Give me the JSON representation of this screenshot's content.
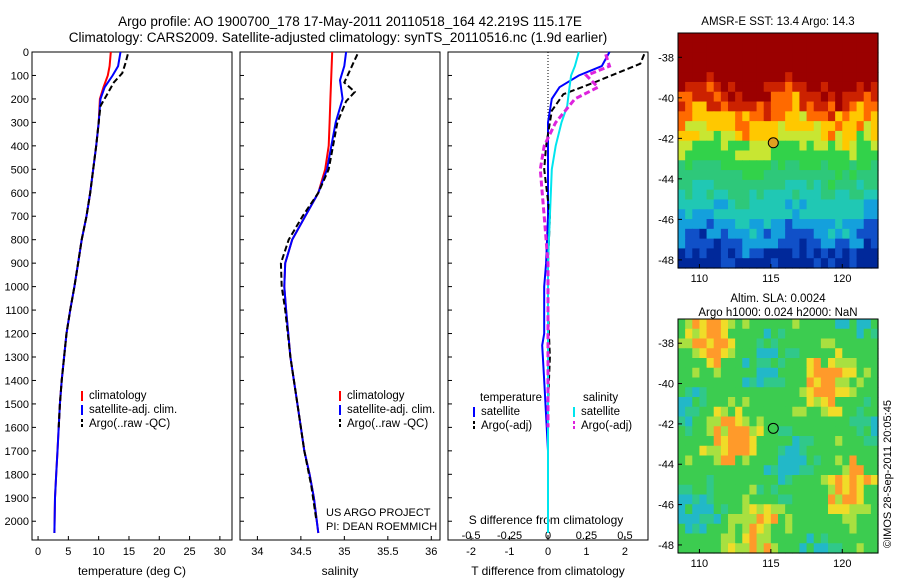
{
  "header": {
    "line1": "Argo profile: AO 1900700_178 17-May-2011 20110518_164 42.219S 115.17E",
    "line2": "Climatology: CARS2009. Satellite-adjusted climatology: synTS_20110516.nc (1.9d earlier)"
  },
  "project": {
    "line1": "US ARGO PROJECT",
    "line2": "PI: DEAN ROEMMICH"
  },
  "credit": "©IMOS 28-Sep-2011 20:05:45",
  "colors": {
    "climatology": "#ff0000",
    "satellite": "#0000ff",
    "argo": "#000000",
    "salinity_sat": "#00e5ee",
    "salinity_argo": "#dd22dd"
  },
  "chart_data": [
    {
      "id": "temperature",
      "type": "line",
      "xlabel": "temperature (deg C)",
      "ylabel": "",
      "xlim": [
        -1,
        32
      ],
      "ylim": [
        2080,
        0
      ],
      "xticks": [
        0,
        5,
        10,
        15,
        20,
        25,
        30
      ],
      "yticks": [
        0,
        100,
        200,
        300,
        400,
        500,
        600,
        700,
        800,
        900,
        1000,
        1100,
        1200,
        1300,
        1400,
        1500,
        1600,
        1700,
        1800,
        1900,
        2000
      ],
      "legend": [
        "climatology",
        "satellite-adj. clim.",
        "Argo(..raw -QC)"
      ],
      "series": [
        {
          "name": "climatology",
          "x": [
            12.0,
            11.8,
            11.5,
            10.8,
            10.2,
            10.0,
            9.6,
            9.1,
            8.6,
            8.0,
            7.2,
            6.6,
            6.0,
            5.3,
            4.7,
            4.3,
            3.9,
            3.6,
            3.4,
            3.2,
            3.0,
            2.8,
            2.7
          ],
          "depth": [
            0,
            60,
            100,
            150,
            200,
            300,
            400,
            500,
            600,
            700,
            800,
            900,
            1000,
            1100,
            1200,
            1300,
            1400,
            1500,
            1600,
            1700,
            1800,
            1900,
            2050
          ]
        },
        {
          "name": "satellite-adj. clim.",
          "x": [
            13.6,
            13.2,
            12.3,
            11.0,
            10.3,
            10.0,
            9.6,
            9.1,
            8.6,
            8.0,
            7.2,
            6.6,
            6.0,
            5.3,
            4.7,
            4.3,
            3.9,
            3.6,
            3.4,
            3.2,
            3.0,
            2.8,
            2.7
          ],
          "depth": [
            0,
            60,
            100,
            150,
            200,
            300,
            400,
            500,
            600,
            700,
            800,
            900,
            1000,
            1100,
            1200,
            1300,
            1400,
            1500,
            1600,
            1700,
            1800,
            1900,
            2050
          ]
        },
        {
          "name": "Argo(..raw -QC)",
          "x": [
            14.8,
            14.4,
            13.9,
            12.5,
            11.4,
            10.3,
            10.0,
            9.6,
            9.1,
            8.6,
            8.0,
            7.2,
            6.6,
            6.0,
            5.3,
            4.7,
            4.3,
            3.9,
            3.6,
            3.4
          ],
          "depth": [
            10,
            50,
            90,
            130,
            180,
            230,
            300,
            400,
            500,
            600,
            700,
            800,
            900,
            1000,
            1100,
            1200,
            1300,
            1400,
            1500,
            1600
          ]
        }
      ]
    },
    {
      "id": "salinity",
      "type": "line",
      "xlabel": "salinity",
      "ylabel": "",
      "xlim": [
        33.8,
        36.1
      ],
      "ylim": [
        2080,
        0
      ],
      "xticks": [
        34,
        34.5,
        35,
        35.5,
        36
      ],
      "legend": [
        "climatology",
        "satellite-adj. clim.",
        "Argo(..raw -QC)"
      ],
      "series": [
        {
          "name": "climatology",
          "x": [
            34.86,
            34.85,
            34.84,
            34.83,
            34.82,
            34.78,
            34.7,
            34.55,
            34.4,
            34.32,
            34.31,
            34.33,
            34.38,
            34.46,
            34.54,
            34.6,
            34.65,
            34.7
          ],
          "depth": [
            0,
            100,
            200,
            300,
            400,
            500,
            600,
            700,
            800,
            900,
            1000,
            1100,
            1300,
            1500,
            1700,
            1800,
            1900,
            2050
          ]
        },
        {
          "name": "satellite-adj. clim.",
          "x": [
            35.02,
            35.0,
            34.95,
            34.98,
            34.9,
            34.8,
            34.7,
            34.55,
            34.4,
            34.32,
            34.31,
            34.33,
            34.38,
            34.46,
            34.54,
            34.6,
            34.65,
            34.7
          ],
          "depth": [
            0,
            60,
            120,
            200,
            300,
            500,
            600,
            700,
            800,
            900,
            1000,
            1100,
            1300,
            1500,
            1700,
            1800,
            1900,
            2050
          ]
        },
        {
          "name": "Argo(..raw -QC)",
          "x": [
            35.15,
            35.1,
            35.05,
            35.0,
            35.12,
            35.02,
            34.92,
            34.82,
            34.7,
            34.52,
            34.36,
            34.27,
            34.28,
            34.32,
            34.38,
            34.46,
            34.54,
            34.62,
            34.68
          ],
          "depth": [
            10,
            50,
            90,
            130,
            170,
            210,
            300,
            500,
            600,
            700,
            800,
            900,
            1000,
            1100,
            1300,
            1500,
            1700,
            1850,
            2000
          ]
        }
      ]
    },
    {
      "id": "difference",
      "type": "line",
      "xlabel": "T difference from climatology",
      "x2label": "S difference from climatology",
      "xlim": [
        -2.6,
        2.6
      ],
      "ylim": [
        2080,
        0
      ],
      "xticks": [
        -2,
        -1,
        0,
        1,
        2
      ],
      "x2ticks": [
        -0.5,
        -0.25,
        0,
        0.25,
        0.5
      ],
      "legend_temperature_title": "temperature",
      "legend_salinity_title": "salinity",
      "legend_labels": [
        "satellite",
        "Argo(-adj)",
        "satellite",
        "Argo(-adj)"
      ],
      "series": [
        {
          "name": "temperature satellite",
          "x": [
            1.6,
            1.4,
            0.8,
            0.3,
            0.1,
            0.0,
            0.0,
            0.0,
            -0.05,
            -0.1,
            -0.1,
            -0.1,
            -0.15,
            -0.1,
            0.0,
            0.0
          ],
          "depth": [
            0,
            60,
            100,
            150,
            200,
            300,
            500,
            700,
            900,
            1000,
            1100,
            1200,
            1250,
            1400,
            1700,
            2050
          ]
        },
        {
          "name": "temperature Argo(-adj)",
          "x": [
            2.5,
            2.4,
            1.8,
            1.2,
            0.4,
            0.1,
            -0.05,
            -0.1,
            0.05,
            0.0,
            0.0,
            0.05,
            0.0,
            0.0
          ],
          "depth": [
            10,
            50,
            90,
            130,
            180,
            250,
            400,
            500,
            700,
            900,
            1100,
            1300,
            1500,
            1600
          ]
        },
        {
          "name": "salinity satellite",
          "x": [
            0.8,
            0.7,
            0.6,
            0.55,
            0.5,
            0.35,
            0.2,
            0.1,
            0.05,
            0.0,
            0.0,
            0.0,
            0.0
          ],
          "depth": [
            0,
            60,
            100,
            160,
            230,
            300,
            400,
            500,
            700,
            900,
            1200,
            1600,
            2050
          ]
        },
        {
          "name": "salinity Argo(-adj)",
          "x": [
            1.5,
            1.6,
            1.0,
            1.3,
            0.7,
            0.2,
            -0.1,
            -0.2,
            -0.15,
            -0.1,
            0.0,
            0.0,
            0.0
          ],
          "depth": [
            10,
            60,
            100,
            150,
            200,
            300,
            400,
            500,
            600,
            700,
            900,
            1200,
            1600
          ]
        }
      ]
    },
    {
      "id": "sst-map",
      "type": "heatmap",
      "title": "AMSR-E SST: 13.4 Argo: 14.3",
      "xlim": [
        108.5,
        122.5
      ],
      "ylim": [
        -48.4,
        -36.8
      ],
      "xticks": [
        110,
        115,
        120
      ],
      "yticks": [
        -38,
        -40,
        -42,
        -44,
        -46,
        -48
      ],
      "marker": [
        115.17,
        -42.219
      ]
    },
    {
      "id": "sla-map",
      "type": "heatmap",
      "title": "Altim. SLA: 0.0024",
      "subtitle": "Argo h1000: 0.024 h2000: NaN",
      "xlim": [
        108.5,
        122.5
      ],
      "ylim": [
        -48.4,
        -36.8
      ],
      "xticks": [
        110,
        115,
        120
      ],
      "yticks": [
        -38,
        -40,
        -42,
        -44,
        -46,
        -48
      ],
      "marker": [
        115.17,
        -42.219
      ]
    }
  ]
}
